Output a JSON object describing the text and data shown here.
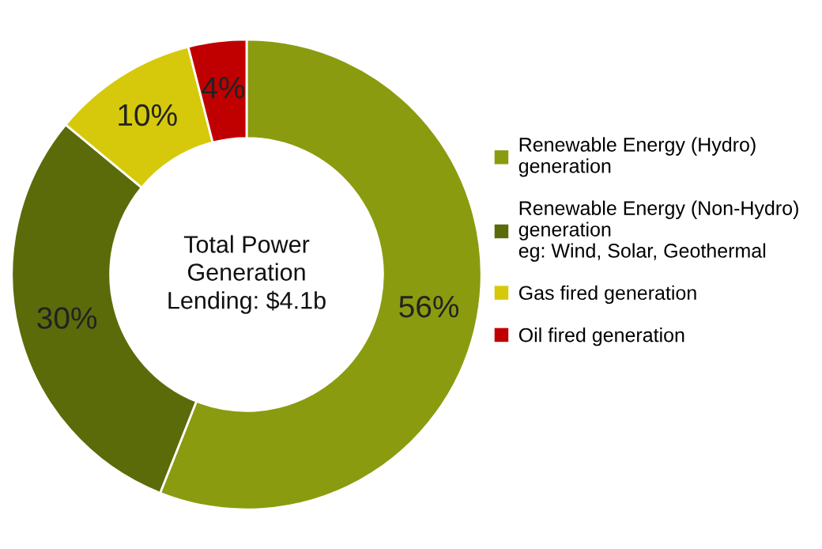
{
  "chart_data": {
    "type": "donut",
    "categories": [
      "Renewable Energy (Hydro)\ngeneration",
      "Renewable Energy (Non-Hydro)\ngeneration\neg: Wind, Solar, Geothermal",
      "Gas fired generation",
      "Oil fired generation"
    ],
    "values": [
      56,
      30,
      10,
      4
    ],
    "colors": [
      "#8a9b0f",
      "#5c6b0a",
      "#d6c90b",
      "#c00000"
    ],
    "value_labels": [
      "56%",
      "30%",
      "10%",
      "4%"
    ],
    "annotations": [
      "Total Power\nGeneration\nLending: $4.1b"
    ],
    "legend": "right"
  }
}
